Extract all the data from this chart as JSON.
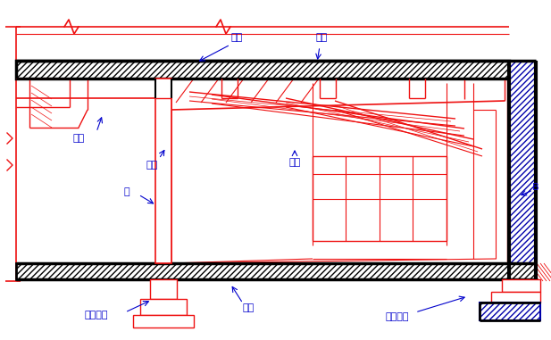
{
  "bg_color": "#ffffff",
  "red": "#EE1111",
  "blue": "#0000CC",
  "black": "#000000",
  "dark_blue": "#0000AA",
  "labels": {
    "主梁_top": "主梁",
    "楼板": "楼板",
    "次梁_left": "次梁",
    "主梁_left": "主梁",
    "次梁_right": "次梁",
    "柱": "柱",
    "独立基础": "独立基础",
    "地面": "地面",
    "条形基础": "条形基础",
    "B": "B"
  },
  "figsize": [
    6.17,
    3.81
  ],
  "dpi": 100
}
